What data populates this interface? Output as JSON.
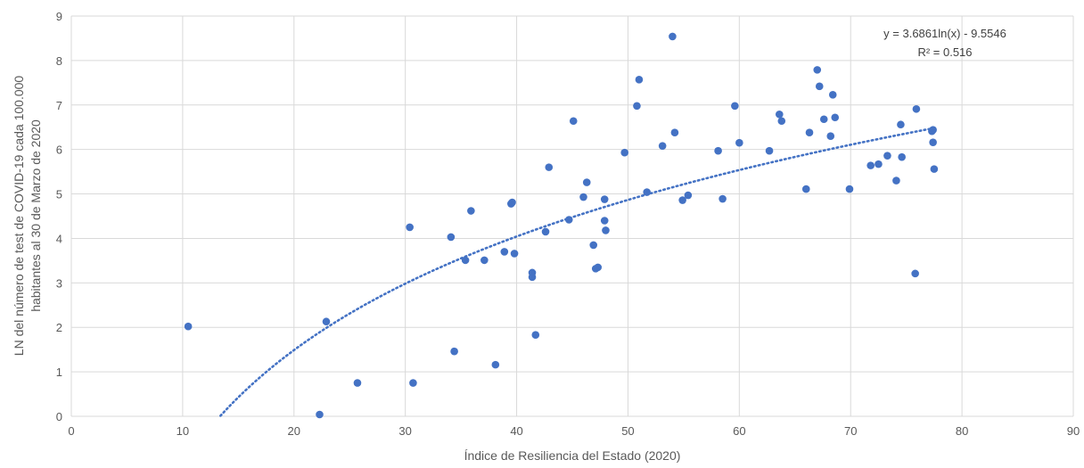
{
  "chart_data": {
    "type": "scatter",
    "xlabel": "Índice de Resiliencia del Estado (2020)",
    "ylabel_lines": [
      "LN del número de test de COVID-19 cada 100.000",
      "habitantes al 30 de Marzo de 2020"
    ],
    "xlim": [
      0,
      90
    ],
    "ylim": [
      0,
      9
    ],
    "x_ticks": [
      0,
      10,
      20,
      30,
      40,
      50,
      60,
      70,
      80,
      90
    ],
    "y_ticks": [
      0,
      1,
      2,
      3,
      4,
      5,
      6,
      7,
      8,
      9
    ],
    "grid": true,
    "marker_color": "#4472C4",
    "trendline": {
      "type": "logarithmic",
      "a": 3.6861,
      "b": -9.5546,
      "x_range": [
        13.4,
        77.5
      ],
      "style": "dotted",
      "color": "#4472C4",
      "equation_label": "y = 3.6861ln(x) - 9.5546",
      "r2_label": "R² = 0.516"
    },
    "points": [
      [
        10.5,
        2.02
      ],
      [
        22.3,
        0.04
      ],
      [
        22.9,
        2.13
      ],
      [
        25.7,
        0.75
      ],
      [
        30.4,
        4.25
      ],
      [
        30.7,
        0.75
      ],
      [
        34.1,
        4.03
      ],
      [
        34.4,
        1.46
      ],
      [
        35.4,
        3.51
      ],
      [
        35.9,
        4.62
      ],
      [
        37.1,
        3.51
      ],
      [
        38.1,
        1.16
      ],
      [
        38.9,
        3.7
      ],
      [
        39.5,
        4.78
      ],
      [
        39.6,
        4.81
      ],
      [
        39.8,
        3.66
      ],
      [
        41.4,
        3.23
      ],
      [
        41.4,
        3.13
      ],
      [
        41.7,
        1.83
      ],
      [
        42.6,
        4.15
      ],
      [
        42.9,
        5.6
      ],
      [
        44.7,
        4.42
      ],
      [
        45.1,
        6.64
      ],
      [
        46.0,
        4.93
      ],
      [
        46.3,
        5.26
      ],
      [
        46.9,
        3.85
      ],
      [
        47.1,
        3.32
      ],
      [
        47.3,
        3.35
      ],
      [
        47.9,
        4.88
      ],
      [
        47.9,
        4.4
      ],
      [
        48.0,
        4.18
      ],
      [
        49.7,
        5.93
      ],
      [
        50.8,
        6.98
      ],
      [
        51.0,
        7.57
      ],
      [
        51.7,
        5.04
      ],
      [
        53.1,
        6.08
      ],
      [
        54.0,
        8.54
      ],
      [
        54.2,
        6.38
      ],
      [
        54.9,
        4.86
      ],
      [
        55.4,
        4.97
      ],
      [
        58.1,
        5.97
      ],
      [
        58.5,
        4.89
      ],
      [
        59.6,
        6.98
      ],
      [
        60.0,
        6.15
      ],
      [
        62.7,
        5.97
      ],
      [
        63.6,
        6.79
      ],
      [
        63.8,
        6.64
      ],
      [
        66.0,
        5.11
      ],
      [
        66.3,
        6.38
      ],
      [
        67.0,
        7.79
      ],
      [
        67.2,
        7.42
      ],
      [
        67.6,
        6.68
      ],
      [
        68.2,
        6.3
      ],
      [
        68.4,
        7.23
      ],
      [
        68.6,
        6.72
      ],
      [
        69.9,
        5.11
      ],
      [
        71.8,
        5.64
      ],
      [
        72.5,
        5.67
      ],
      [
        73.3,
        5.86
      ],
      [
        74.1,
        5.3
      ],
      [
        74.5,
        6.56
      ],
      [
        74.6,
        5.83
      ],
      [
        75.8,
        3.21
      ],
      [
        75.9,
        6.91
      ],
      [
        77.3,
        6.41
      ],
      [
        77.4,
        6.44
      ],
      [
        77.4,
        6.16
      ],
      [
        77.5,
        5.56
      ]
    ]
  }
}
